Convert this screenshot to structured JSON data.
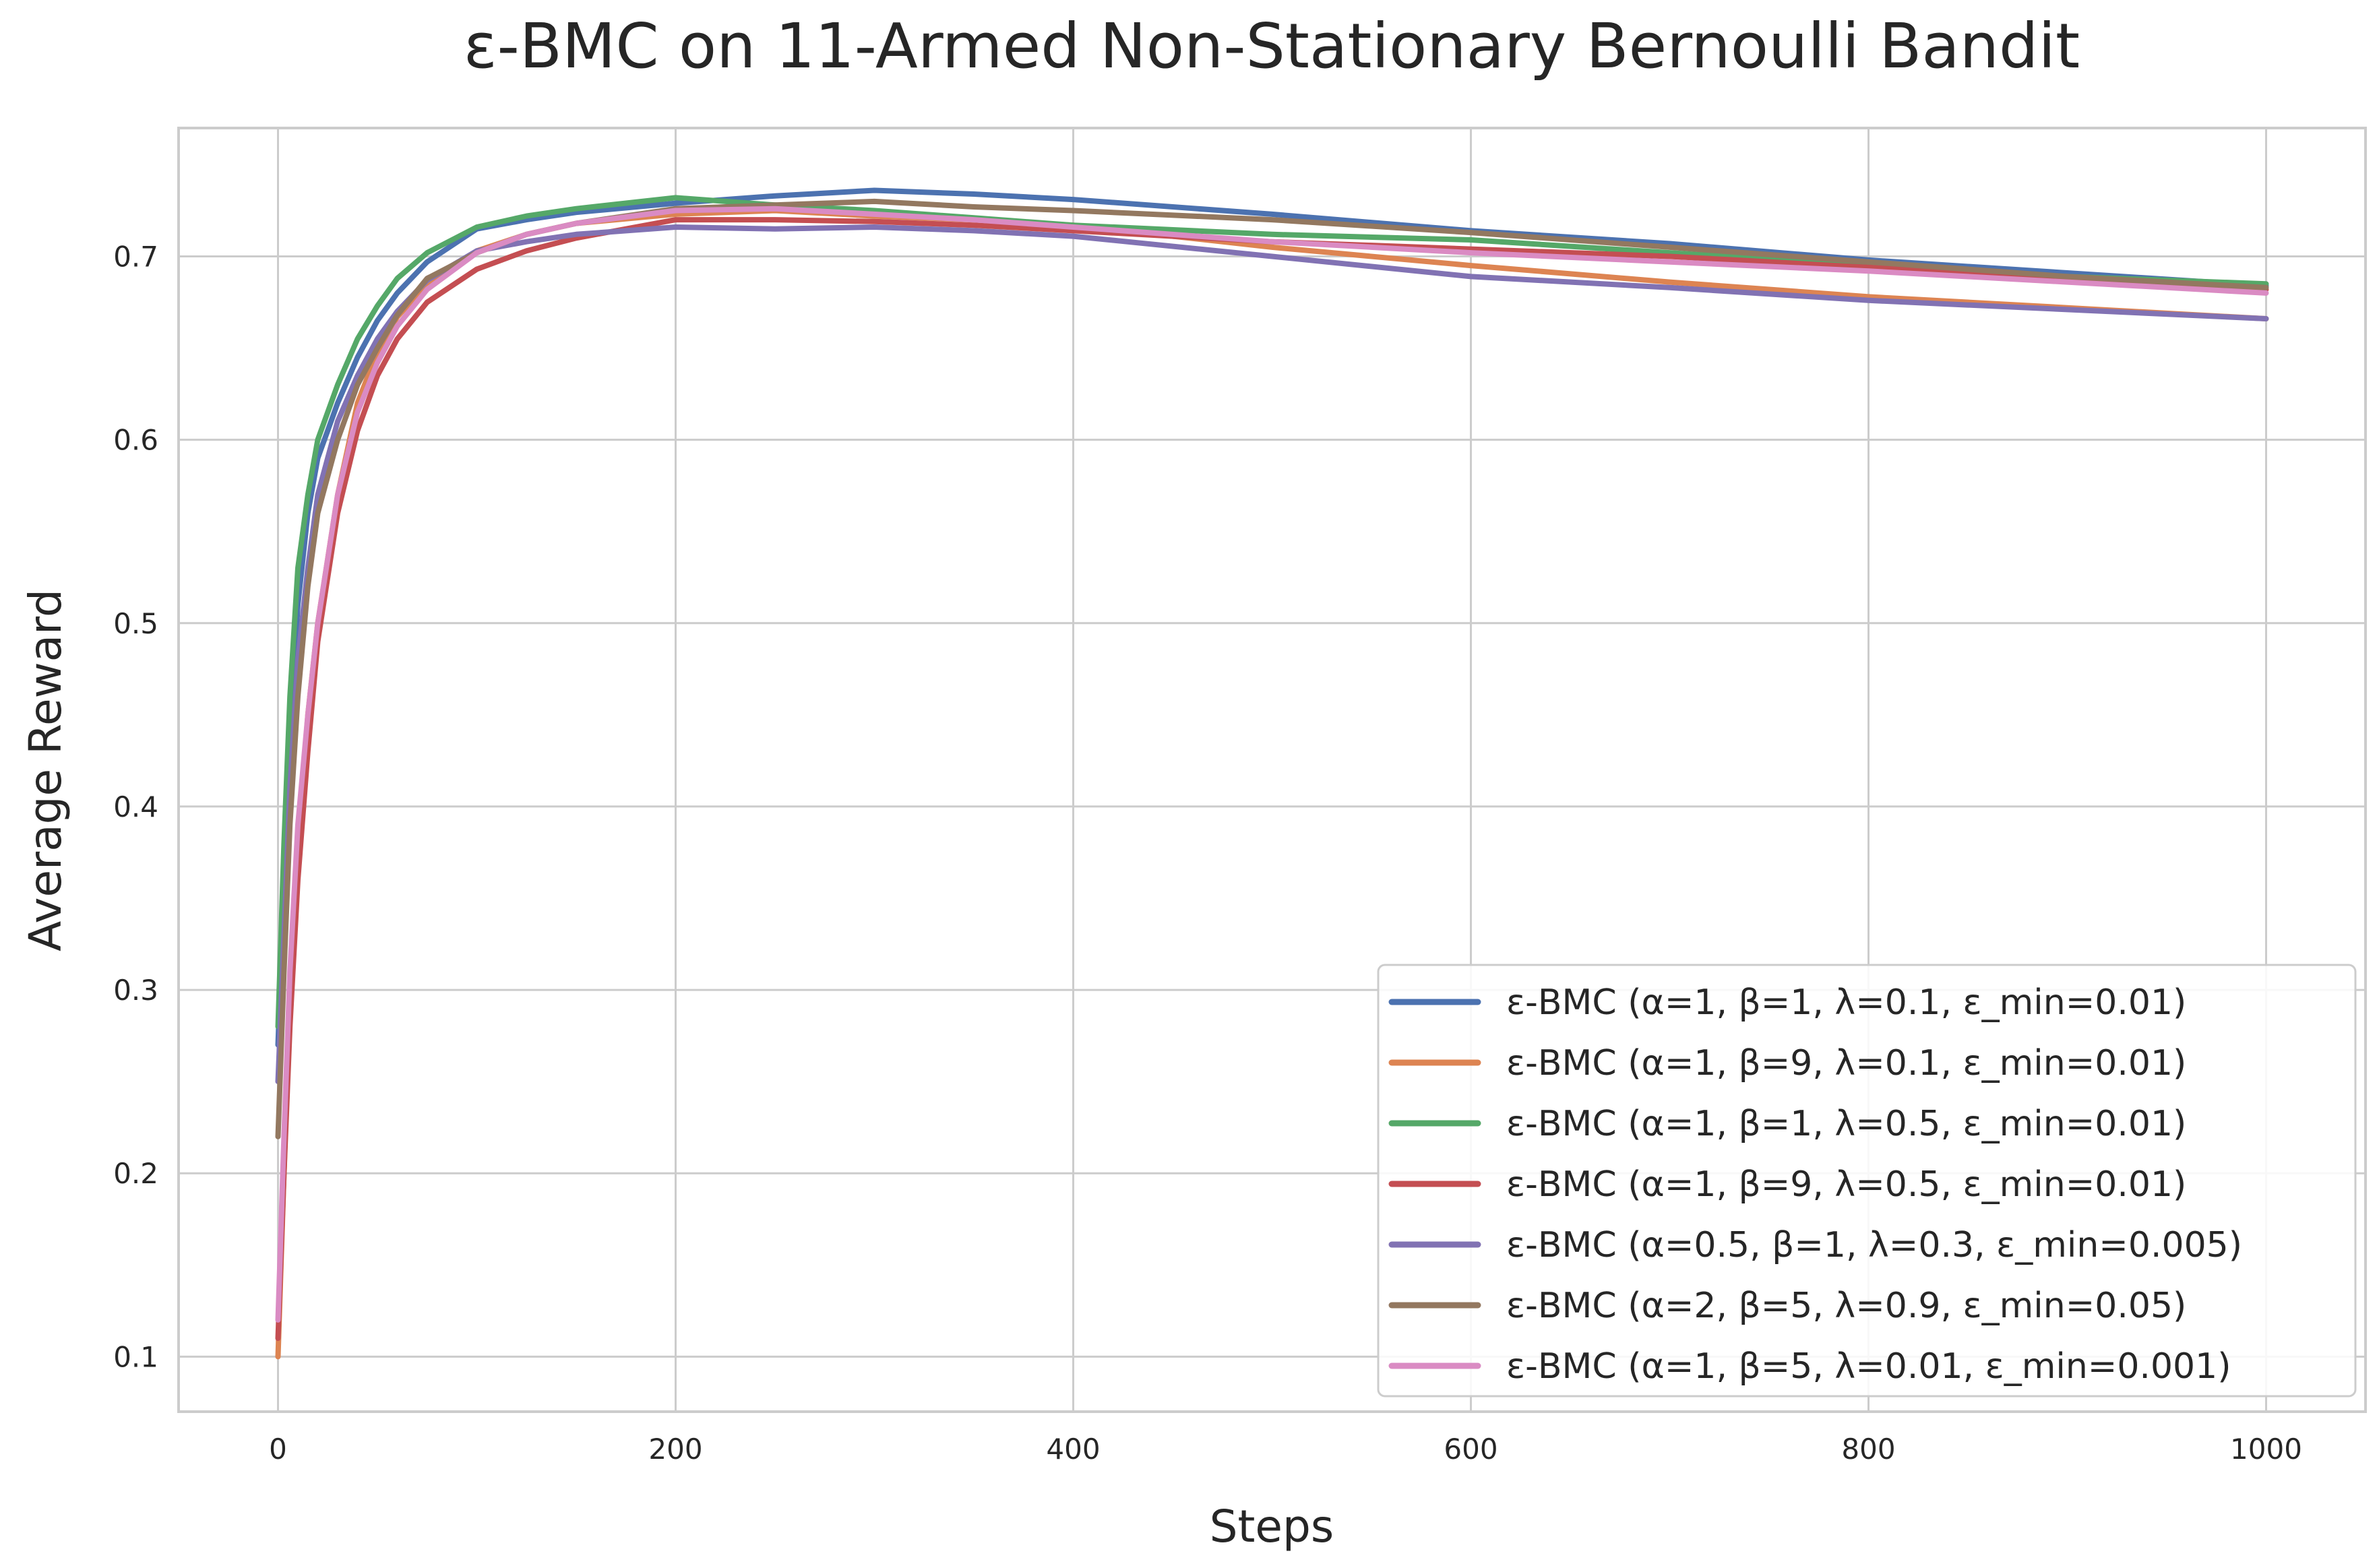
{
  "chart_data": {
    "type": "line",
    "title": "ε-BMC on 11-Armed Non-Stationary Bernoulli Bandit",
    "xlabel": "Steps",
    "ylabel": "Average Reward",
    "xlim": [
      -50,
      1050
    ],
    "ylim": [
      0.07,
      0.77
    ],
    "xticks": [
      0,
      200,
      400,
      600,
      800,
      1000
    ],
    "yticks": [
      0.1,
      0.2,
      0.3,
      0.4,
      0.5,
      0.6,
      0.7
    ],
    "grid": true,
    "legend_position": "bottom-right",
    "x": [
      0,
      3,
      6,
      10,
      15,
      20,
      30,
      40,
      50,
      60,
      75,
      100,
      125,
      150,
      200,
      250,
      300,
      350,
      400,
      500,
      600,
      700,
      800,
      900,
      1000
    ],
    "series": [
      {
        "name": "ε-BMC (α=1, β=1, λ=0.1, ε_min=0.01)",
        "color": "#4c72b0",
        "values": [
          0.27,
          0.36,
          0.44,
          0.51,
          0.56,
          0.59,
          0.62,
          0.645,
          0.665,
          0.68,
          0.697,
          0.715,
          0.72,
          0.724,
          0.729,
          0.733,
          0.736,
          0.734,
          0.731,
          0.723,
          0.714,
          0.707,
          0.698,
          0.691,
          0.684
        ]
      },
      {
        "name": "ε-BMC (α=1, β=9, λ=0.1, ε_min=0.01)",
        "color": "#dd8452",
        "values": [
          0.1,
          0.2,
          0.3,
          0.38,
          0.45,
          0.5,
          0.57,
          0.62,
          0.648,
          0.667,
          0.685,
          0.703,
          0.712,
          0.718,
          0.723,
          0.725,
          0.722,
          0.72,
          0.717,
          0.705,
          0.695,
          0.686,
          0.678,
          0.672,
          0.666
        ]
      },
      {
        "name": "ε-BMC (α=1, β=1, λ=0.5, ε_min=0.01)",
        "color": "#55a868",
        "values": [
          0.28,
          0.38,
          0.46,
          0.53,
          0.57,
          0.6,
          0.63,
          0.655,
          0.673,
          0.688,
          0.702,
          0.716,
          0.722,
          0.726,
          0.732,
          0.728,
          0.725,
          0.721,
          0.717,
          0.712,
          0.709,
          0.702,
          0.695,
          0.689,
          0.685
        ]
      },
      {
        "name": "ε-BMC (α=1, β=9, λ=0.5, ε_min=0.01)",
        "color": "#c44e52",
        "values": [
          0.11,
          0.2,
          0.28,
          0.36,
          0.43,
          0.49,
          0.56,
          0.605,
          0.635,
          0.655,
          0.675,
          0.693,
          0.703,
          0.71,
          0.72,
          0.72,
          0.719,
          0.717,
          0.714,
          0.708,
          0.704,
          0.7,
          0.694,
          0.688,
          0.682
        ]
      },
      {
        "name": "ε-BMC (α=0.5, β=1, λ=0.3, ε_min=0.005)",
        "color": "#8172b3",
        "values": [
          0.25,
          0.33,
          0.41,
          0.48,
          0.53,
          0.57,
          0.61,
          0.635,
          0.655,
          0.67,
          0.687,
          0.703,
          0.708,
          0.712,
          0.716,
          0.715,
          0.716,
          0.714,
          0.711,
          0.7,
          0.689,
          0.683,
          0.676,
          0.671,
          0.666
        ]
      },
      {
        "name": "ε-BMC (α=2, β=5, λ=0.9, ε_min=0.05)",
        "color": "#937860",
        "values": [
          0.22,
          0.31,
          0.39,
          0.46,
          0.52,
          0.56,
          0.6,
          0.63,
          0.65,
          0.668,
          0.688,
          0.702,
          0.712,
          0.718,
          0.726,
          0.728,
          0.73,
          0.727,
          0.725,
          0.72,
          0.713,
          0.705,
          0.697,
          0.689,
          0.683
        ]
      },
      {
        "name": "ε-BMC (α=1, β=5, λ=0.01, ε_min=0.001)",
        "color": "#da8bc3",
        "values": [
          0.12,
          0.22,
          0.31,
          0.39,
          0.45,
          0.5,
          0.57,
          0.615,
          0.642,
          0.662,
          0.682,
          0.702,
          0.712,
          0.718,
          0.725,
          0.726,
          0.723,
          0.72,
          0.716,
          0.708,
          0.702,
          0.697,
          0.692,
          0.686,
          0.68
        ]
      }
    ]
  }
}
